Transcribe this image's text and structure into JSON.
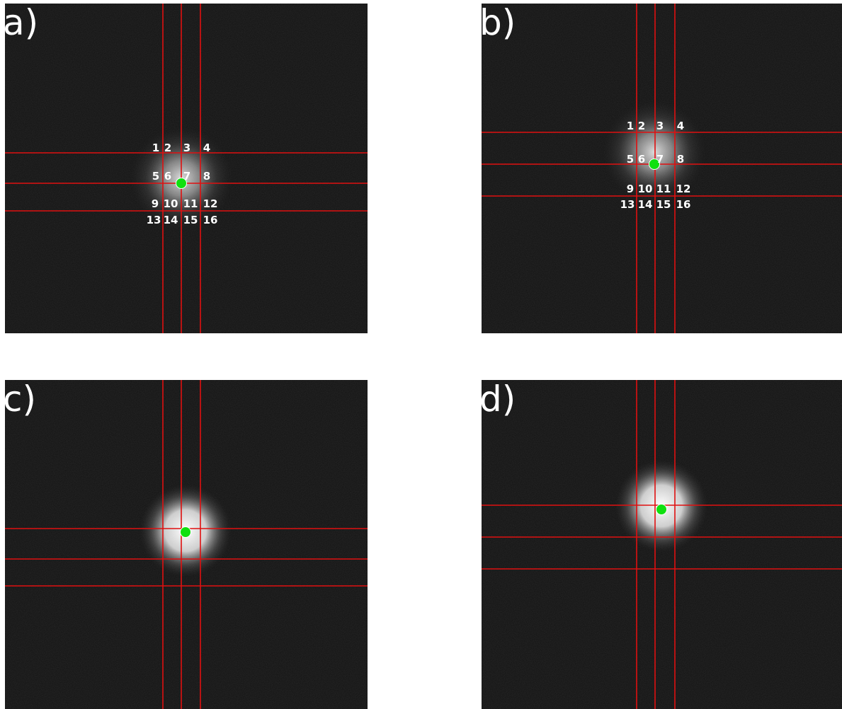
{
  "panels": [
    {
      "label": "a)",
      "cells": [
        "1",
        "2",
        "3",
        "4",
        "5",
        "6",
        "7",
        "8",
        "9",
        "10",
        "11",
        "12",
        "13",
        "14",
        "15",
        "16"
      ]
    },
    {
      "label": "b)",
      "cells": [
        "1",
        "2",
        "3",
        "4",
        "5",
        "6",
        "7",
        "8",
        "9",
        "10",
        "11",
        "12",
        "13",
        "14",
        "15",
        "16"
      ]
    },
    {
      "label": "c)"
    },
    {
      "label": "d)"
    }
  ]
}
